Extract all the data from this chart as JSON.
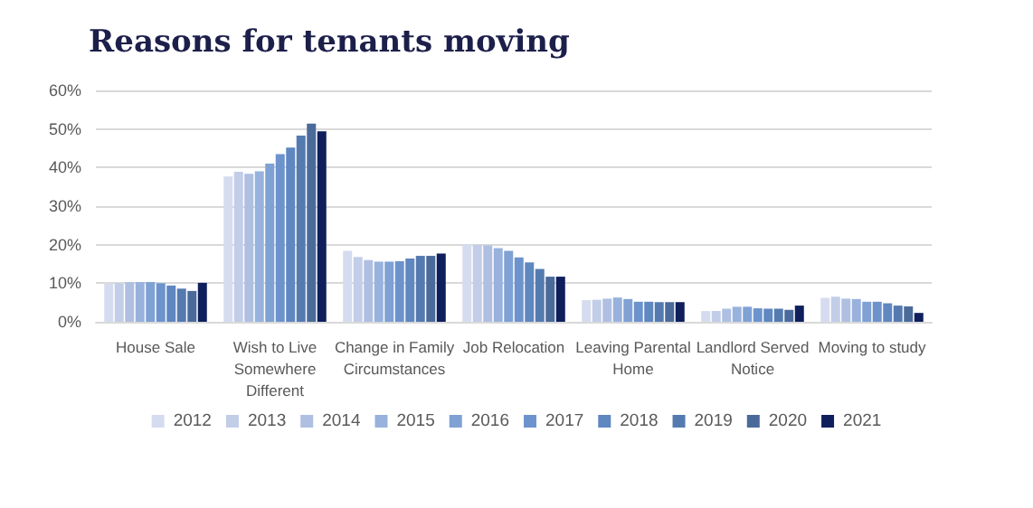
{
  "chart_data": {
    "type": "bar",
    "title": "Reasons for tenants moving",
    "categories": [
      "House Sale",
      "Wish to Live\nSomewhere\nDifferent",
      "Change in Family\nCircumstances",
      "Job Relocation",
      "Leaving Parental\nHome",
      "Landlord Served\nNotice",
      "Moving to study"
    ],
    "series": [
      {
        "name": "2012",
        "color": "#d6dcef",
        "values": [
          10.0,
          37.7,
          18.4,
          20.1,
          5.6,
          2.8,
          6.2
        ]
      },
      {
        "name": "2013",
        "color": "#c2cde8",
        "values": [
          10.0,
          38.9,
          16.8,
          19.9,
          5.7,
          2.8,
          6.5
        ]
      },
      {
        "name": "2014",
        "color": "#aebfe2",
        "values": [
          10.3,
          38.4,
          16.0,
          19.8,
          6.0,
          3.4,
          6.0
        ]
      },
      {
        "name": "2015",
        "color": "#98b2dd",
        "values": [
          10.3,
          39.0,
          15.6,
          19.1,
          6.3,
          3.9,
          5.9
        ]
      },
      {
        "name": "2016",
        "color": "#7fa1d4",
        "values": [
          10.3,
          41.0,
          15.6,
          18.4,
          5.9,
          3.9,
          5.2
        ]
      },
      {
        "name": "2017",
        "color": "#6d93cc",
        "values": [
          10.0,
          43.5,
          15.7,
          16.7,
          5.2,
          3.5,
          5.2
        ]
      },
      {
        "name": "2018",
        "color": "#5f87c0",
        "values": [
          9.4,
          45.2,
          16.4,
          15.4,
          5.2,
          3.4,
          4.8
        ]
      },
      {
        "name": "2019",
        "color": "#557ab0",
        "values": [
          8.6,
          48.3,
          17.1,
          13.7,
          5.1,
          3.4,
          4.2
        ]
      },
      {
        "name": "2020",
        "color": "#4a6a9a",
        "values": [
          8.0,
          51.4,
          17.1,
          11.7,
          5.1,
          3.1,
          4.0
        ]
      },
      {
        "name": "2021",
        "color": "#0f1f5c",
        "values": [
          10.1,
          49.4,
          17.7,
          11.7,
          5.1,
          4.2,
          2.3
        ]
      }
    ],
    "ylim": [
      0,
      60
    ],
    "yticks": [
      {
        "value": 0,
        "label": "0%"
      },
      {
        "value": 10,
        "label": "10%"
      },
      {
        "value": 20,
        "label": "20%"
      },
      {
        "value": 30,
        "label": "30%"
      },
      {
        "value": 40,
        "label": "40%"
      },
      {
        "value": 50,
        "label": "50%"
      },
      {
        "value": 60,
        "label": "60%"
      }
    ],
    "grid": "y",
    "legend": "bottom"
  }
}
